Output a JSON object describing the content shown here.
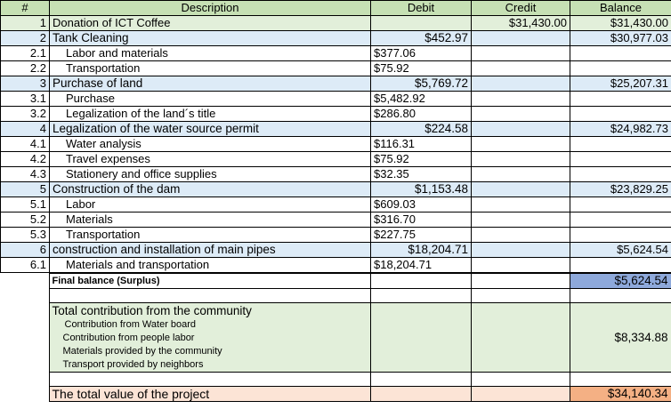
{
  "header": {
    "num": "#",
    "description": "Description",
    "debit": "Debit",
    "credit": "Credit",
    "balance": "Balance"
  },
  "rows": [
    {
      "num": "1",
      "desc": "Donation of ICT Coffee",
      "debit": "",
      "credit": "$31,430.00",
      "balance": "$31,430.00",
      "kind": "green"
    },
    {
      "num": "2",
      "desc": "Tank Cleaning",
      "debit": "$452.97",
      "credit": "",
      "balance": "$30,977.03",
      "kind": "grp"
    },
    {
      "num": "2.1",
      "desc": "Labor and materials",
      "debit": "$377.06",
      "credit": "",
      "balance": "",
      "kind": "sub"
    },
    {
      "num": "2.2",
      "desc": "Transportation",
      "debit": "$75.92",
      "credit": "",
      "balance": "",
      "kind": "sub"
    },
    {
      "num": "3",
      "desc": "Purchase of land",
      "debit": "$5,769.72",
      "credit": "",
      "balance": "$25,207.31",
      "kind": "grp"
    },
    {
      "num": "3.1",
      "desc": "Purchase",
      "debit": "$5,482.92",
      "credit": "",
      "balance": "",
      "kind": "sub"
    },
    {
      "num": "3.2",
      "desc": "Legalization of the land´s title",
      "debit": "$286.80",
      "credit": "",
      "balance": "",
      "kind": "sub"
    },
    {
      "num": "4",
      "desc": "Legalization of the water source permit",
      "debit": "$224.58",
      "credit": "",
      "balance": "$24,982.73",
      "kind": "grp"
    },
    {
      "num": "4.1",
      "desc": "Water analysis",
      "debit": "$116.31",
      "credit": "",
      "balance": "",
      "kind": "sub"
    },
    {
      "num": "4.2",
      "desc": "Travel expenses",
      "debit": "$75.92",
      "credit": "",
      "balance": "",
      "kind": "sub"
    },
    {
      "num": "4.3",
      "desc": "Stationery and office supplies",
      "debit": "$32.35",
      "credit": "",
      "balance": "",
      "kind": "sub"
    },
    {
      "num": "5",
      "desc": "Construction of the dam",
      "debit": "$1,153.48",
      "credit": "",
      "balance": "$23,829.25",
      "kind": "grp"
    },
    {
      "num": "5.1",
      "desc": "Labor",
      "debit": "$609.03",
      "credit": "",
      "balance": "",
      "kind": "sub"
    },
    {
      "num": "5.2",
      "desc": "Materials",
      "debit": "$316.70",
      "credit": "",
      "balance": "",
      "kind": "sub"
    },
    {
      "num": "5.3",
      "desc": "Transportation",
      "debit": "$227.75",
      "credit": "",
      "balance": "",
      "kind": "sub"
    },
    {
      "num": "6",
      "desc": "construction and installation of main pipes",
      "debit": "$18,204.71",
      "credit": "",
      "balance": "$5,624.54",
      "kind": "grp"
    },
    {
      "num": "6.1",
      "desc": "Materials and transportation",
      "debit": "$18,204.71",
      "credit": "",
      "balance": "",
      "kind": "sub"
    }
  ],
  "final": {
    "label": "Final balance (Surplus)",
    "balance": "$5,624.54"
  },
  "contribution": {
    "title": "Total contribution from the community",
    "lines": [
      "Contribution from Water board",
      "Contribution from people labor",
      "Materials provided by the community",
      "Transport provided by neighbors"
    ],
    "balance": "$8,334.88"
  },
  "total": {
    "label": "The total value of the project",
    "balance": "$34,140.34"
  },
  "colors": {
    "header_green": "#c6e0b4",
    "row_green": "#e2efda",
    "group_blue": "#ddebf7",
    "final_blue": "#8ea9db",
    "total_peach": "#fce4d6",
    "total_orange": "#f4b084"
  }
}
